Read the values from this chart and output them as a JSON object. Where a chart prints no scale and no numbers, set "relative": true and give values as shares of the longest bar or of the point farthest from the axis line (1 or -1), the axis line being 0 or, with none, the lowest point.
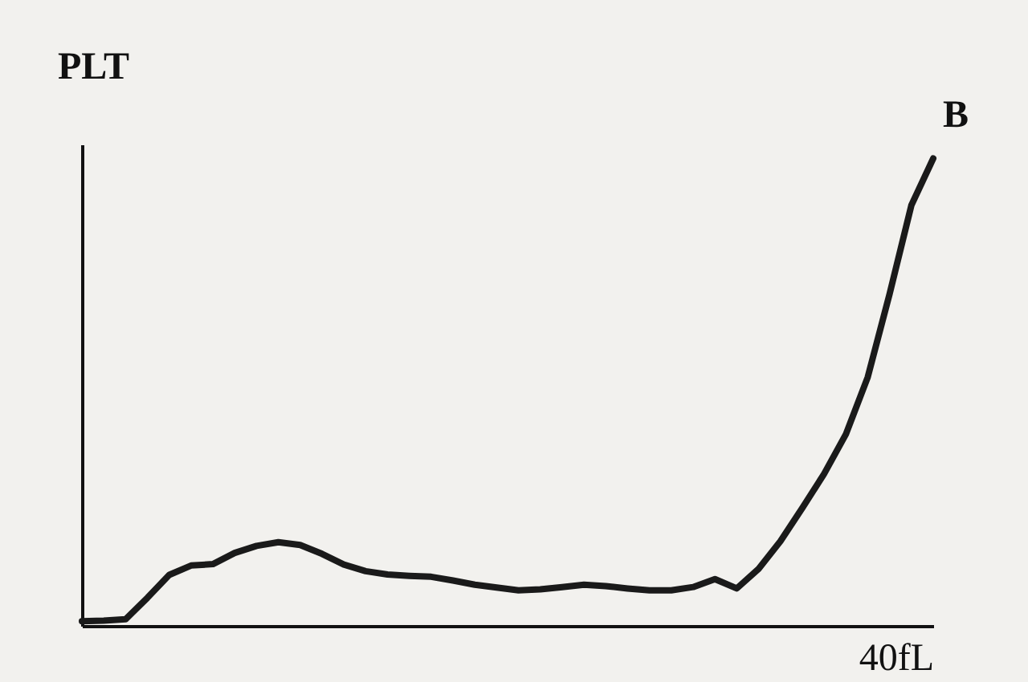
{
  "chart_data": {
    "type": "line",
    "relative": true,
    "title": "PLT",
    "xlabel": "40fL",
    "annotations": [
      "B"
    ],
    "categories": [
      null,
      null,
      null,
      null,
      null,
      null,
      null,
      null,
      null,
      null,
      null,
      null,
      null,
      null,
      null,
      null,
      null,
      null,
      null,
      null,
      null,
      null,
      null,
      null,
      null,
      null,
      null,
      null,
      null,
      null,
      null,
      null,
      null,
      null,
      null,
      null,
      null,
      null,
      null,
      null
    ],
    "series": [
      {
        "color": "#1a1a1a",
        "values": [
          0.01,
          0.011,
          0.014,
          0.06,
          0.109,
          0.129,
          0.132,
          0.156,
          0.171,
          0.179,
          0.173,
          0.154,
          0.131,
          0.117,
          0.11,
          0.107,
          0.105,
          0.097,
          0.088,
          0.082,
          0.076,
          0.078,
          0.083,
          0.088,
          0.085,
          0.08,
          0.076,
          0.076,
          0.083,
          0.1,
          0.08,
          0.122,
          0.181,
          0.252,
          0.325,
          0.41,
          0.532,
          0.71,
          0.9,
          1
        ]
      }
    ]
  }
}
